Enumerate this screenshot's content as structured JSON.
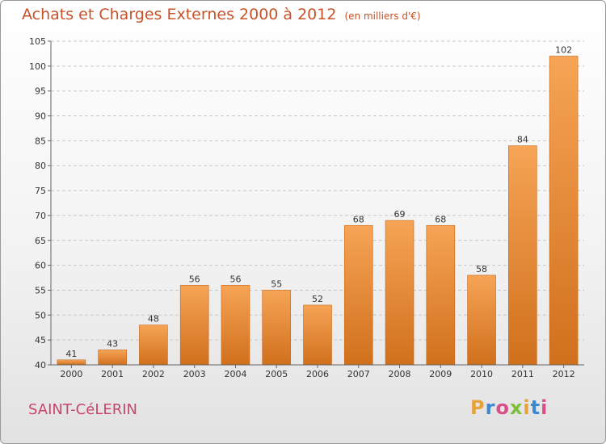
{
  "title": "Achats et Charges Externes 2000 à 2012",
  "subtitle": "(en milliers d'€)",
  "commune": "SAINT-CéLERIN",
  "logo": {
    "letters": [
      "P",
      "r",
      "o",
      "x",
      "i",
      "t",
      "i"
    ],
    "colors": [
      "#e8a23a",
      "#3b8ad0",
      "#d94f8a",
      "#7bbf3a",
      "#e8a23a",
      "#3b8ad0",
      "#d94f8a"
    ]
  },
  "colors": {
    "bar_top": "#f6a456",
    "bar_bottom": "#d0701c",
    "title": "#c8522a",
    "commune": "#c8466a"
  },
  "chart_data": {
    "type": "bar",
    "categories": [
      "2000",
      "2001",
      "2002",
      "2003",
      "2004",
      "2005",
      "2006",
      "2007",
      "2008",
      "2009",
      "2010",
      "2011",
      "2012"
    ],
    "values": [
      41,
      43,
      48,
      56,
      56,
      55,
      52,
      68,
      69,
      68,
      58,
      84,
      102
    ],
    "ylim": [
      40,
      105
    ],
    "yticks": [
      40,
      45,
      50,
      55,
      60,
      65,
      70,
      75,
      80,
      85,
      90,
      95,
      100,
      105
    ],
    "grid": true,
    "xlabel": "",
    "ylabel": ""
  }
}
